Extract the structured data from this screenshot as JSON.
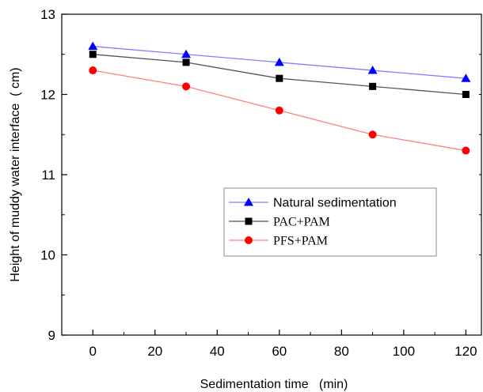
{
  "chart_data": {
    "type": "line",
    "xlabel": "Sedimentation time   (min)",
    "ylabel": "Height of muddy water interface  ( cm)",
    "xlim": [
      -10,
      125
    ],
    "ylim": [
      9,
      13
    ],
    "x_ticks": [
      0,
      20,
      40,
      60,
      80,
      100,
      120
    ],
    "y_ticks": [
      9,
      10,
      11,
      12,
      13
    ],
    "x": [
      0,
      30,
      60,
      90,
      120
    ],
    "grid": false,
    "legend_position": "center-right",
    "series": [
      {
        "name": "Natural sedimentation",
        "values": [
          12.6,
          12.5,
          12.4,
          12.3,
          12.2
        ],
        "color": "#0000ff",
        "line_color": "#8080ff",
        "marker": "triangle",
        "legend_font": "sans"
      },
      {
        "name": "PAC+PAM",
        "values": [
          12.5,
          12.4,
          12.2,
          12.1,
          12.0
        ],
        "color": "#000000",
        "line_color": "#555555",
        "marker": "square",
        "legend_font": "serif"
      },
      {
        "name": "PFS+PAM",
        "values": [
          12.3,
          12.1,
          11.8,
          11.5,
          11.3
        ],
        "color": "#ff0000",
        "line_color": "#ff8080",
        "marker": "circle",
        "legend_font": "serif"
      }
    ]
  }
}
